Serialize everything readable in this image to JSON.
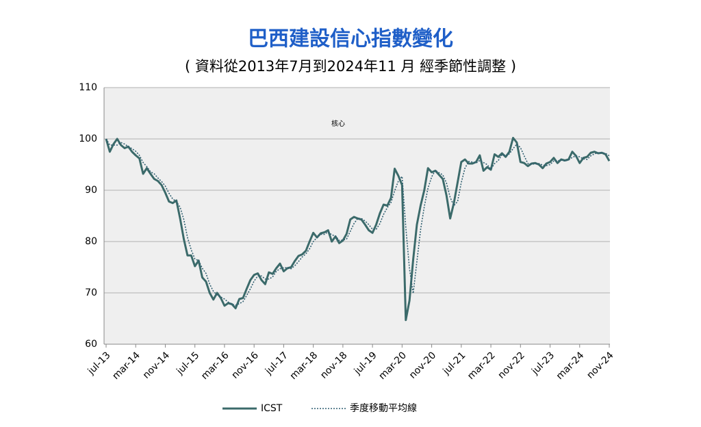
{
  "chart_data": {
    "type": "line",
    "title": "巴西建設信心指數變化",
    "subtitle": "( 資料從2013年7月到2024年11 月 經季節性調整 )",
    "annotation": "核心",
    "categories": [
      "jul-13",
      null,
      null,
      null,
      null,
      null,
      null,
      null,
      "mar-14",
      null,
      null,
      null,
      null,
      null,
      null,
      null,
      "nov-14",
      null,
      null,
      null,
      null,
      null,
      null,
      null,
      "jul-15",
      null,
      null,
      null,
      null,
      null,
      null,
      null,
      "mar-16",
      null,
      null,
      null,
      null,
      null,
      null,
      null,
      "nov-16",
      null,
      null,
      null,
      null,
      null,
      null,
      null,
      "jul-17",
      null,
      null,
      null,
      null,
      null,
      null,
      null,
      "mar-18",
      null,
      null,
      null,
      null,
      null,
      null,
      null,
      "nov-18",
      null,
      null,
      null,
      null,
      null,
      null,
      null,
      "jul-19",
      null,
      null,
      null,
      null,
      null,
      null,
      null,
      "mar-20",
      null,
      null,
      null,
      null,
      null,
      null,
      null,
      "nov-20",
      null,
      null,
      null,
      null,
      null,
      null,
      null,
      "jul-21",
      null,
      null,
      null,
      null,
      null,
      null,
      null,
      "mar-22",
      null,
      null,
      null,
      null,
      null,
      null,
      null,
      "nov-22",
      null,
      null,
      null,
      null,
      null,
      null,
      null,
      "jul-23",
      null,
      null,
      null,
      null,
      null,
      null,
      null,
      "mar-24",
      null,
      null,
      null,
      null,
      null,
      null,
      null,
      "nov-24"
    ],
    "series": [
      {
        "name": "ICST",
        "color": "#3b6a6a",
        "style": "solid",
        "values": [
          100,
          97.5,
          99,
          100,
          98.8,
          98.2,
          98.5,
          97.5,
          96.8,
          96.2,
          93.2,
          94.3,
          93.2,
          92.2,
          91.8,
          91,
          89.5,
          87.8,
          87.5,
          88,
          84.5,
          80.5,
          77.3,
          77.3,
          75.2,
          76.3,
          73,
          72.2,
          70,
          68.7,
          70,
          69,
          67.5,
          68,
          67.8,
          67,
          68.8,
          69,
          70.8,
          72.5,
          73.5,
          73.8,
          72.5,
          71.7,
          74,
          73.7,
          74.8,
          75.7,
          74.2,
          74.8,
          75,
          76.2,
          77.2,
          77.5,
          78.2,
          80,
          81.7,
          80.8,
          81.6,
          81.8,
          82.2,
          80,
          81,
          79.7,
          80.2,
          81.5,
          84.3,
          84.8,
          84.5,
          84.3,
          83.3,
          82.2,
          81.7,
          83.3,
          85.5,
          87.2,
          87,
          88.5,
          94.2,
          92.8,
          91,
          64.7,
          68.5,
          76.5,
          83.3,
          87,
          90,
          94.3,
          93.5,
          93.8,
          93,
          92.2,
          89,
          84.5,
          87.5,
          91.5,
          95.5,
          96,
          95.2,
          95.2,
          95.5,
          96.8,
          93.8,
          94.5,
          94,
          97,
          96.5,
          97.2,
          96.5,
          97.5,
          100.2,
          99.3,
          95.5,
          95.3,
          94.7,
          95.2,
          95.3,
          95,
          94.3,
          95.2,
          95.5,
          96.3,
          95.3,
          96,
          95.8,
          96,
          97.5,
          96.7,
          95.3,
          96.3,
          96.5,
          97.3,
          97.5,
          97.2,
          97.3,
          97,
          95.7
        ]
      },
      {
        "name": "季度移動平均線",
        "color": "#2f5f70",
        "style": "dotted",
        "values": [
          100,
          98.8,
          98.8,
          98.8,
          99.3,
          99,
          98.5,
          98.1,
          97.6,
          96.8,
          95.4,
          94.6,
          93.6,
          93.2,
          92.4,
          91.7,
          90.8,
          89.4,
          88.3,
          87.8,
          86.7,
          84.3,
          80.8,
          78.4,
          76.6,
          76.3,
          74.8,
          73.8,
          71.7,
          70.3,
          69.6,
          69.2,
          68.8,
          68.2,
          67.8,
          67.6,
          67.9,
          68.3,
          69.5,
          70.8,
          72.3,
          73.3,
          73.3,
          72.7,
          72.7,
          73.1,
          74.2,
          74.7,
          74.9,
          74.9,
          74.7,
          75.3,
          76.1,
          77,
          77.6,
          78.6,
          80,
          80.8,
          81.4,
          81.4,
          81.9,
          81.3,
          81.1,
          80.2,
          80.3,
          80.5,
          82,
          83.5,
          84.5,
          84.5,
          84,
          83.3,
          82.4,
          82.4,
          83.5,
          85.3,
          86.6,
          87.6,
          89.9,
          91.8,
          92.7,
          82.8,
          74.7,
          69.9,
          76.1,
          82.3,
          86.8,
          90.4,
          92.6,
          93.9,
          93.4,
          93,
          91.4,
          88.6,
          87,
          87.8,
          91.5,
          94.3,
          95.6,
          95.5,
          95.3,
          95.8,
          95.4,
          95,
          94.1,
          95.2,
          95.8,
          96.9,
          96.7,
          97.1,
          98.1,
          99,
          98.3,
          96.7,
          95.2,
          95.1,
          95.1,
          95.2,
          94.9,
          94.8,
          95,
          95.7,
          95.7,
          95.9,
          95.7,
          95.9,
          96.4,
          96.7,
          96.5,
          96.1,
          96,
          96.7,
          97.1,
          97.3,
          97.3,
          97.2,
          96.7
        ]
      }
    ],
    "ylim": [
      60,
      110
    ],
    "yticks": [
      60,
      70,
      80,
      90,
      100,
      110
    ],
    "grid": true
  }
}
